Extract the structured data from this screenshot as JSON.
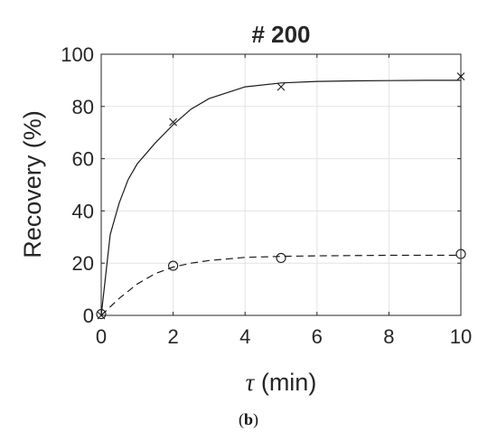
{
  "chart_data": {
    "type": "line",
    "title": "# 200",
    "xlabel": {
      "symbol": "τ",
      "rest": " (min)"
    },
    "ylabel": "Recovery (%)",
    "caption": {
      "open": "(",
      "letter": "b",
      "close": ")"
    },
    "xlim": [
      0,
      10
    ],
    "ylim": [
      0,
      100
    ],
    "xticks": [
      0,
      2,
      4,
      6,
      8,
      10
    ],
    "yticks": [
      0,
      20,
      40,
      60,
      80,
      100
    ],
    "grid": true,
    "series": [
      {
        "style": "solid",
        "marker": "x",
        "points": {
          "x": [
            0,
            2,
            5,
            10
          ],
          "y": [
            0,
            74,
            87.5,
            91.5
          ]
        },
        "fit": {
          "x": [
            0,
            0.25,
            0.5,
            0.75,
            1,
            1.5,
            2,
            2.5,
            3,
            4,
            5,
            6,
            7,
            8,
            9,
            10
          ],
          "y": [
            0,
            31,
            43,
            52,
            58,
            66,
            73,
            79,
            83,
            87.5,
            89,
            89.6,
            89.8,
            89.9,
            90,
            90
          ]
        }
      },
      {
        "style": "dashed",
        "marker": "o",
        "points": {
          "x": [
            0,
            2,
            5,
            10
          ],
          "y": [
            0.5,
            19,
            22,
            23.5
          ]
        },
        "fit": {
          "x": [
            0,
            0.5,
            1,
            1.5,
            2,
            2.5,
            3,
            4,
            5,
            6,
            7,
            8,
            9,
            10
          ],
          "y": [
            0,
            6.5,
            12,
            16,
            18.5,
            20,
            21,
            22.2,
            22.6,
            22.8,
            22.9,
            23,
            23,
            23
          ]
        }
      }
    ]
  }
}
